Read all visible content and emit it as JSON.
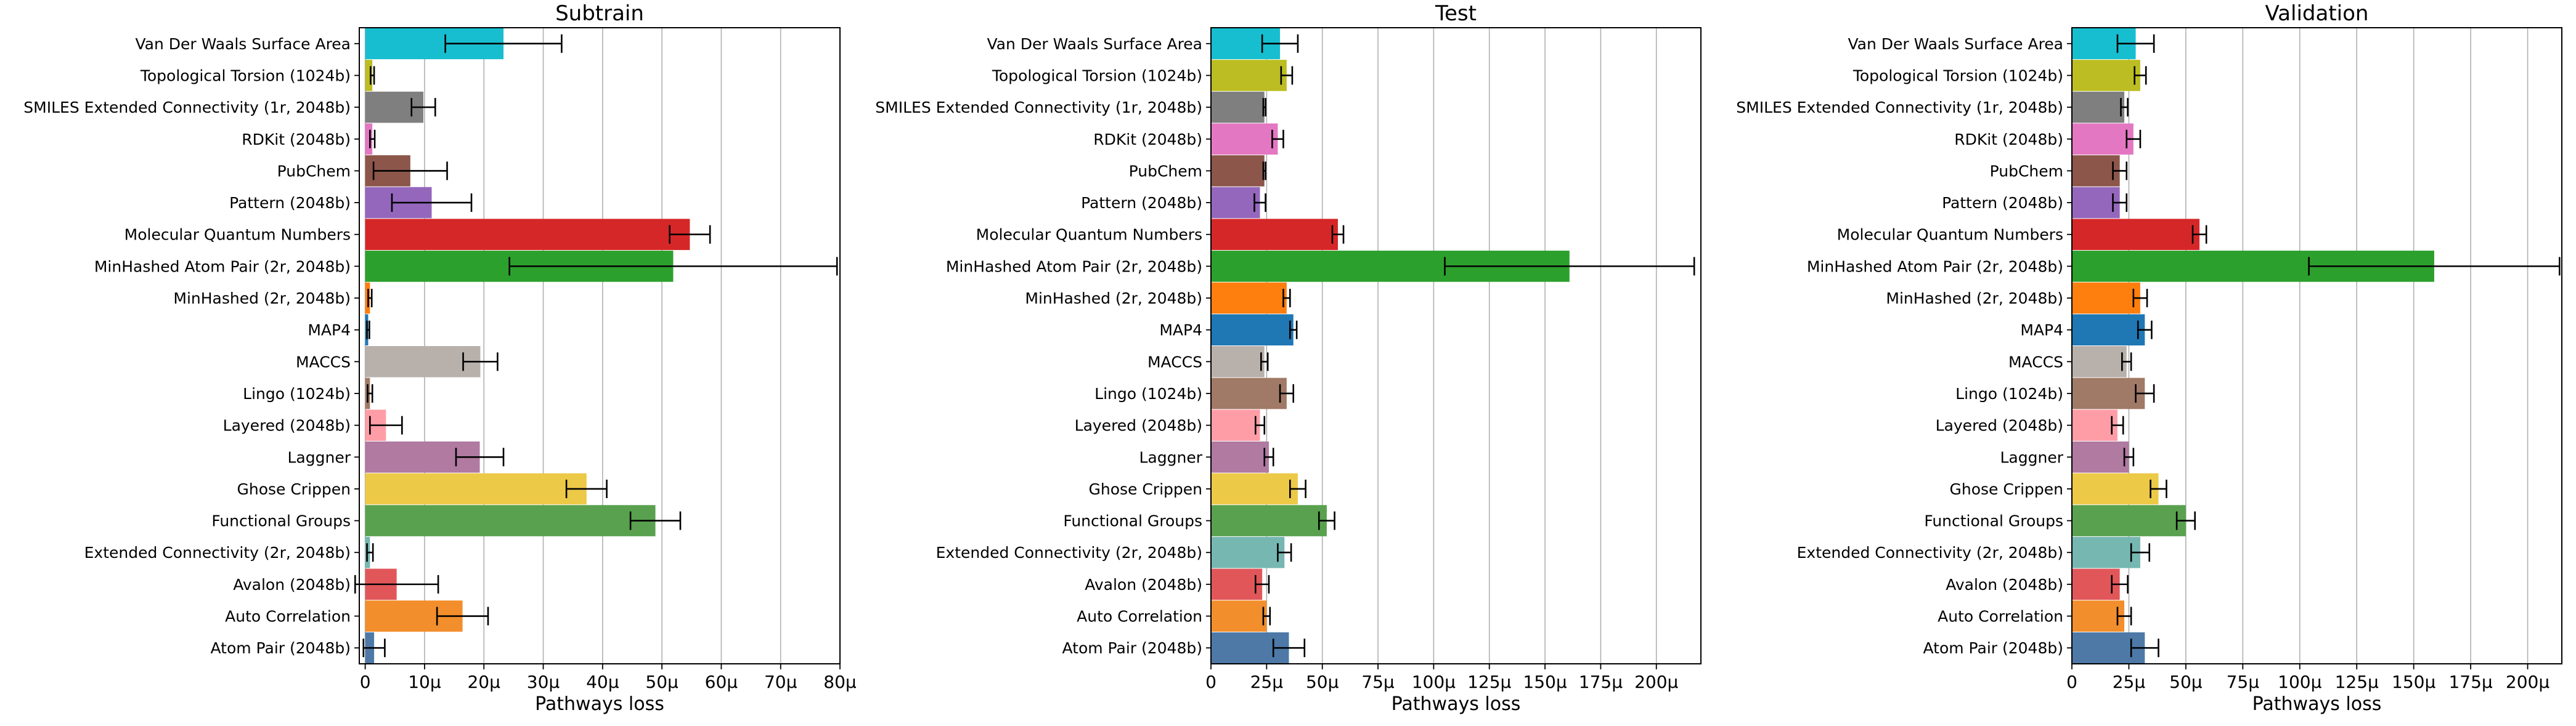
{
  "chart_data": [
    {
      "type": "bar",
      "orientation": "horizontal",
      "title": "Subtrain",
      "xlabel": "Pathways loss",
      "ylabel": "",
      "xlim": [
        -1,
        80
      ],
      "xticks": [
        0,
        10,
        20,
        30,
        40,
        50,
        60,
        70,
        80
      ],
      "xtick_labels": [
        "0",
        "10μ",
        "20μ",
        "30μ",
        "40μ",
        "50μ",
        "60μ",
        "70μ",
        "80μ"
      ],
      "grid": "vertical",
      "categories": [
        "Van Der Waals Surface Area",
        "Topological Torsion (1024b)",
        "SMILES Extended Connectivity (1r, 2048b)",
        "RDKit (2048b)",
        "PubChem",
        "Pattern (2048b)",
        "Molecular Quantum Numbers",
        "MinHashed Atom Pair (2r, 2048b)",
        "MinHashed (2r, 2048b)",
        "MAP4",
        "MACCS",
        "Lingo (1024b)",
        "Layered (2048b)",
        "Laggner",
        "Ghose Crippen",
        "Functional Groups",
        "Extended Connectivity (2r, 2048b)",
        "Avalon (2048b)",
        "Auto Correlation",
        "Atom Pair (2048b)"
      ],
      "values": [
        23.3,
        1.2,
        9.8,
        1.2,
        7.6,
        11.2,
        54.7,
        51.9,
        0.8,
        0.5,
        19.4,
        0.8,
        3.5,
        19.3,
        37.3,
        48.9,
        0.8,
        5.3,
        16.4,
        1.5
      ],
      "errors": [
        9.8,
        0.3,
        2.0,
        0.4,
        6.2,
        6.7,
        3.4,
        27.6,
        0.3,
        0.2,
        2.9,
        0.4,
        2.7,
        4.0,
        3.4,
        4.2,
        0.5,
        7.0,
        4.3,
        1.8
      ],
      "unit": "μ"
    },
    {
      "type": "bar",
      "orientation": "horizontal",
      "title": "Test",
      "xlabel": "Pathways loss",
      "ylabel": "",
      "xlim": [
        0,
        220
      ],
      "xticks": [
        0,
        25,
        50,
        75,
        100,
        125,
        150,
        175,
        200
      ],
      "xtick_labels": [
        "0",
        "25μ",
        "50μ",
        "75μ",
        "100μ",
        "125μ",
        "150μ",
        "175μ",
        "200μ"
      ],
      "grid": "vertical",
      "categories": [
        "Van Der Waals Surface Area",
        "Topological Torsion (1024b)",
        "SMILES Extended Connectivity (1r, 2048b)",
        "RDKit (2048b)",
        "PubChem",
        "Pattern (2048b)",
        "Molecular Quantum Numbers",
        "MinHashed Atom Pair (2r, 2048b)",
        "MinHashed (2r, 2048b)",
        "MAP4",
        "MACCS",
        "Lingo (1024b)",
        "Layered (2048b)",
        "Laggner",
        "Ghose Crippen",
        "Functional Groups",
        "Extended Connectivity (2r, 2048b)",
        "Avalon (2048b)",
        "Auto Correlation",
        "Atom Pair (2048b)"
      ],
      "values": [
        31,
        34,
        24,
        30,
        24,
        22,
        57,
        161,
        34,
        37,
        24,
        34,
        22,
        26,
        39,
        52,
        33,
        23,
        25,
        35
      ],
      "errors": [
        8,
        2.5,
        0.5,
        2.5,
        0.5,
        2.5,
        2.5,
        56,
        1.5,
        1.5,
        1.5,
        3,
        2,
        2,
        3.5,
        3.5,
        3,
        3,
        1.5,
        7
      ],
      "unit": "μ"
    },
    {
      "type": "bar",
      "orientation": "horizontal",
      "title": "Validation",
      "xlabel": "Pathways loss",
      "ylabel": "",
      "xlim": [
        0,
        215
      ],
      "xticks": [
        0,
        25,
        50,
        75,
        100,
        125,
        150,
        175,
        200
      ],
      "xtick_labels": [
        "0",
        "25μ",
        "50μ",
        "75μ",
        "100μ",
        "125μ",
        "150μ",
        "175μ",
        "200μ"
      ],
      "grid": "vertical",
      "categories": [
        "Van Der Waals Surface Area",
        "Topological Torsion (1024b)",
        "SMILES Extended Connectivity (1r, 2048b)",
        "RDKit (2048b)",
        "PubChem",
        "Pattern (2048b)",
        "Molecular Quantum Numbers",
        "MinHashed Atom Pair (2r, 2048b)",
        "MinHashed (2r, 2048b)",
        "MAP4",
        "MACCS",
        "Lingo (1024b)",
        "Layered (2048b)",
        "Laggner",
        "Ghose Crippen",
        "Functional Groups",
        "Extended Connectivity (2r, 2048b)",
        "Avalon (2048b)",
        "Auto Correlation",
        "Atom Pair (2048b)"
      ],
      "values": [
        28,
        30,
        23,
        27,
        21,
        21,
        56,
        159,
        30,
        32,
        24,
        32,
        20,
        25,
        38,
        50,
        30,
        21,
        23,
        32
      ],
      "errors": [
        8,
        2.5,
        1.5,
        3,
        3,
        3,
        3,
        55,
        3,
        3,
        2,
        4,
        2.5,
        2,
        3.5,
        4,
        4,
        3.5,
        3,
        6
      ],
      "unit": "μ"
    }
  ],
  "colors": [
    "#17becf",
    "#bcbd22",
    "#7f7f7f",
    "#e377c2",
    "#8c564b",
    "#9467bd",
    "#d62728",
    "#2ca02c",
    "#ff7f0e",
    "#1f77b4",
    "#b8b0aa",
    "#a07a66",
    "#ff9da7",
    "#b07aa1",
    "#edc948",
    "#59a14f",
    "#76b7b2",
    "#e15759",
    "#f28e2b",
    "#4e79a7"
  ]
}
